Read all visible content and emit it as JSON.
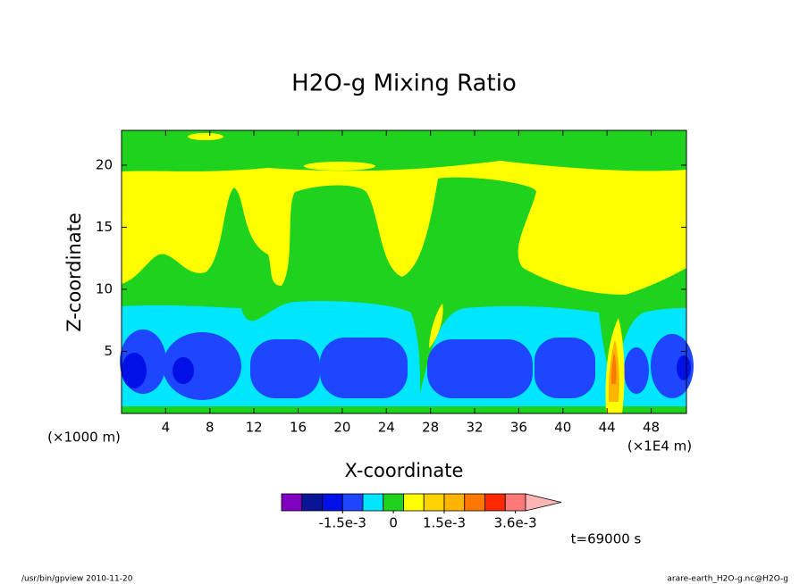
{
  "chart_data": {
    "type": "contour",
    "title": "H2O-g Mixing Ratio",
    "x_label": "X-coordinate",
    "y_label": "Z-coordinate",
    "y_unit": "(×1000 m)",
    "x_unit": "(×1E4 m)",
    "xlim": [
      0,
      51.2
    ],
    "xticks": [
      4,
      8,
      12,
      16,
      20,
      24,
      28,
      32,
      36,
      40,
      44,
      48
    ],
    "ylim": [
      0,
      22.8
    ],
    "yticks": [
      5,
      10,
      15,
      20
    ],
    "colorbar": {
      "clim": [
        -0.0033,
        0.0039
      ],
      "colors": [
        "#8000c0",
        "#0a1496",
        "#0010e6",
        "#1e46ff",
        "#00e6ff",
        "#1ed21e",
        "#ffff00",
        "#ffd200",
        "#ffb400",
        "#ff7800",
        "#ff2800",
        "#ff7878"
      ],
      "extend_color": "#ffb4b4",
      "ticks": [
        {
          "value": -0.0015,
          "label": "-1.5e-3"
        },
        {
          "value": 0,
          "label": "0"
        },
        {
          "value": 0.0015,
          "label": "1.5e-3"
        },
        {
          "value": 0.0036,
          "label": "3.6e-3"
        }
      ]
    },
    "time_label": "t=69000 s",
    "footer_left": "/usr/bin/gpview  2010-11-20",
    "footer_right": "arare-earth_H2O-g.nc@H2O-g"
  }
}
